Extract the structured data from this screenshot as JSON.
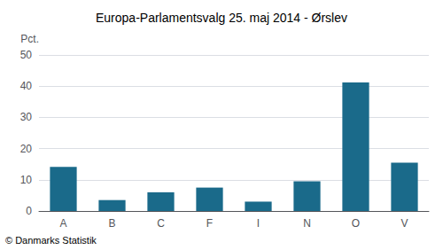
{
  "chart_data": {
    "type": "bar",
    "title": "Europa-Parlamentsvalg 25. maj 2014 - Ørslev",
    "categories": [
      "A",
      "B",
      "C",
      "F",
      "I",
      "N",
      "O",
      "V"
    ],
    "values": [
      14.1,
      3.5,
      6.0,
      7.5,
      3.0,
      9.5,
      41.2,
      15.5
    ],
    "color": "#1a6a8a",
    "ylabel": "Pct.",
    "footer": "© Danmarks Statistik",
    "ylim": [
      0,
      50
    ],
    "yticks": [
      0,
      10,
      20,
      30,
      40,
      50
    ],
    "grid": true
  }
}
